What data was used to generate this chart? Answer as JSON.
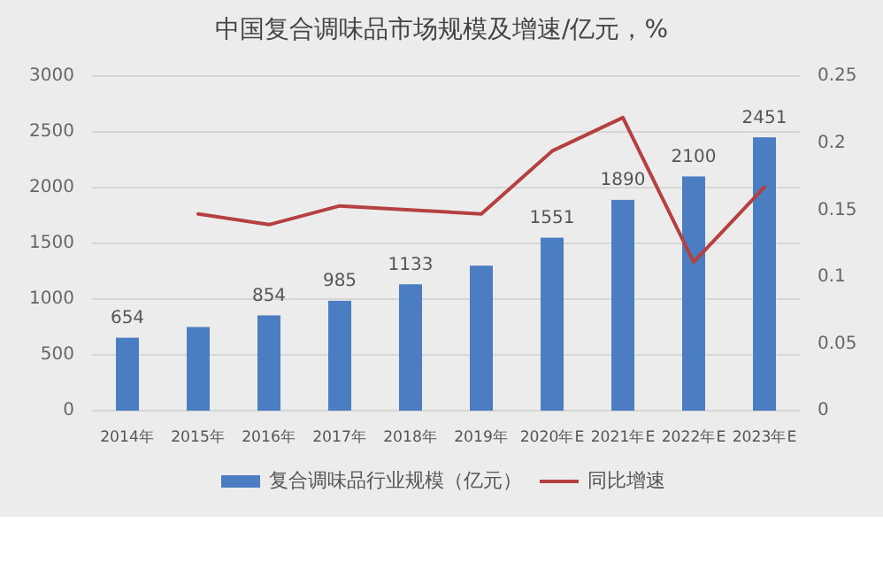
{
  "chart_data": {
    "type": "bar",
    "title": "中国复合调味品市场规模及增速/亿元，%",
    "categories": [
      "2014年",
      "2015年",
      "2016年",
      "2017年",
      "2018年",
      "2019年",
      "2020年E",
      "2021年E",
      "2022年E",
      "2023年E"
    ],
    "series": [
      {
        "name": "复合调味品行业规模（亿元）",
        "color": "#4a7dc2",
        "values": [
          654,
          750,
          854,
          985,
          1133,
          1300,
          1551,
          1890,
          2100,
          2451
        ],
        "value_labels": [
          "654",
          null,
          "854",
          "985",
          "1133",
          null,
          "1551",
          "1890",
          "2100",
          "2451"
        ]
      },
      {
        "name": "同比增速",
        "type": "line",
        "axis": "y2",
        "color": "#b5403f",
        "values": [
          null,
          0.147,
          0.139,
          0.153,
          0.15,
          0.147,
          0.194,
          0.219,
          0.111,
          0.167
        ]
      }
    ],
    "ylim": [
      0,
      3000
    ],
    "yticks": [
      0,
      500,
      1000,
      1500,
      2000,
      2500,
      3000
    ],
    "y2lim": [
      0,
      0.25
    ],
    "y2ticks": [
      0,
      0.05,
      0.1,
      0.15,
      0.2,
      0.25
    ],
    "grid": "y",
    "legend": "bottom"
  }
}
